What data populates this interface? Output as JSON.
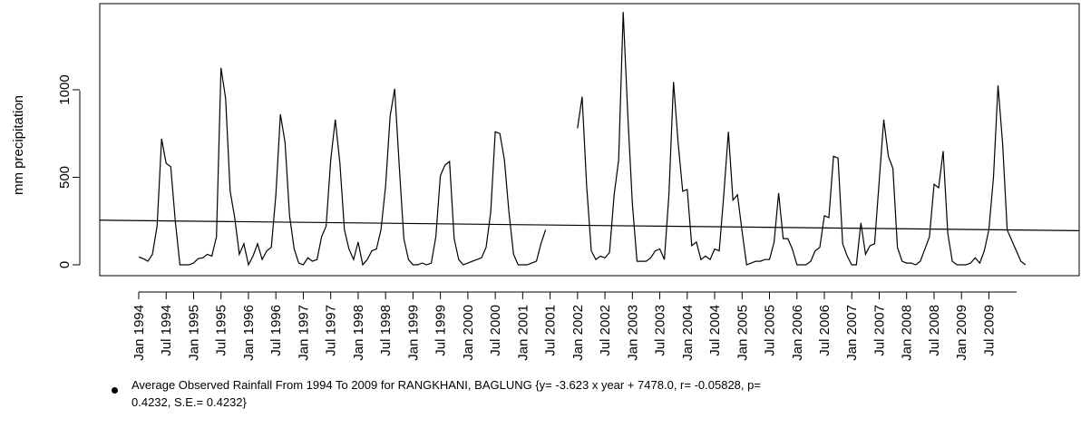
{
  "chart_data": {
    "type": "line",
    "title": "",
    "xlabel": "",
    "ylabel": "mm precipitation",
    "ylim": [
      -60,
      1500
    ],
    "yticks": [
      0,
      500,
      1000
    ],
    "x_start": "1994-01",
    "x_tick_labels": [
      "Jan 1994",
      "Jul 1994",
      "Jan 1995",
      "Jul 1995",
      "Jan 1996",
      "Jul 1996",
      "Jan 1997",
      "Jul 1997",
      "Jan 1998",
      "Jul 1998",
      "Jan 1999",
      "Jul 1999",
      "Jan 2000",
      "Jul 2000",
      "Jan 2001",
      "Jul 2001",
      "Jan 2002",
      "Jul 2002",
      "Jan 2003",
      "Jul 2003",
      "Jan 2004",
      "Jul 2004",
      "Jan 2005",
      "Jul 2005",
      "Jan 2006",
      "Jul 2006",
      "Jan 2007",
      "Jul 2007",
      "Jan 2008",
      "Jul 2008",
      "Jan 2009",
      "Jul 2009"
    ],
    "grid": false,
    "series": [
      {
        "values": [
          45,
          35,
          20,
          60,
          220,
          720,
          580,
          560,
          250,
          0,
          0,
          0,
          10,
          35,
          40,
          60,
          50,
          160,
          1125,
          950,
          420,
          270,
          60,
          120,
          0,
          50,
          120,
          30,
          80,
          100,
          400,
          860,
          700,
          280,
          90,
          10,
          0,
          40,
          20,
          30,
          160,
          220,
          600,
          830,
          580,
          200,
          90,
          30,
          130,
          0,
          30,
          80,
          90,
          200,
          450,
          850,
          1005,
          560,
          150,
          30,
          0,
          0,
          10,
          0,
          10,
          160,
          510,
          570,
          590,
          150,
          30,
          0,
          10,
          20,
          30,
          40,
          100,
          300,
          760,
          750,
          600,
          300,
          60,
          0,
          0,
          0,
          10,
          20,
          120,
          200,
          null,
          null,
          null,
          null,
          null,
          null,
          780,
          960,
          450,
          80,
          30,
          50,
          40,
          70,
          400,
          600,
          1445,
          850,
          350,
          20,
          20,
          20,
          40,
          80,
          90,
          30,
          400,
          1045,
          700,
          420,
          430,
          110,
          130,
          30,
          50,
          30,
          90,
          80,
          400,
          760,
          370,
          400,
          190,
          0,
          10,
          20,
          20,
          30,
          30,
          130,
          410,
          150,
          150,
          90,
          0,
          0,
          0,
          20,
          80,
          100,
          280,
          270,
          620,
          610,
          120,
          50,
          0,
          0,
          240,
          60,
          110,
          120,
          480,
          830,
          620,
          550,
          100,
          20,
          10,
          10,
          0,
          20,
          90,
          160,
          460,
          440,
          650,
          180,
          20,
          0,
          0,
          0,
          10,
          40,
          10,
          80,
          200,
          500,
          1025,
          690,
          200,
          140,
          80,
          20,
          0
        ]
      }
    ],
    "trend_line": {
      "start": 255,
      "end": 195
    }
  },
  "caption": {
    "line1": "Average Observed Rainfall From 1994 To 2009 for RANGKHANI, BAGLUNG {y= -3.623 x year + 7478.0, r= -0.05828, p=",
    "line2": "0.4232, S.E.= 0.4232}"
  }
}
